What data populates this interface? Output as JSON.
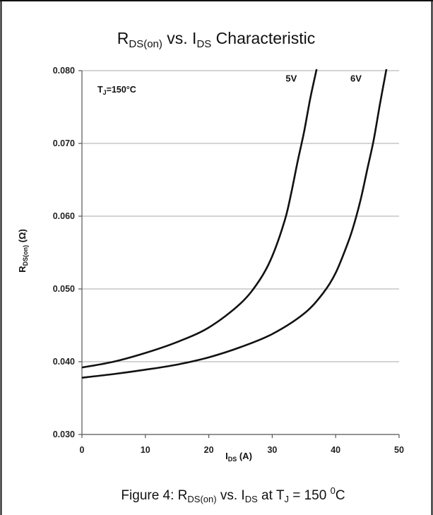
{
  "title": {
    "main": "R",
    "sub": "DS(on)",
    "mid": " vs. I",
    "sub2": "DS",
    "end": " Characteristic"
  },
  "caption": {
    "pre": "Figure 4: R",
    "sub": "DS(on)",
    "mid": " vs. I",
    "sub2": "DS",
    "mid2": " at T",
    "sub3": "J",
    "end": " = 150 ",
    "sup": "0",
    "unit": "C"
  },
  "note": {
    "pre": "T",
    "sub": "J",
    "post": "=150°C"
  },
  "chart_data": {
    "type": "line",
    "xlabel": {
      "main": "I",
      "sub": "DS",
      "unit": " (A)"
    },
    "ylabel": {
      "main": "R",
      "sub": "DS(on)",
      "unit": " (Ω)"
    },
    "xlim": [
      0,
      50
    ],
    "ylim": [
      0.03,
      0.08
    ],
    "x_ticks": [
      "0",
      "10",
      "20",
      "30",
      "40",
      "50"
    ],
    "y_ticks": [
      "0.030",
      "0.040",
      "0.050",
      "0.060",
      "0.070",
      "0.080"
    ],
    "grid": true,
    "series": [
      {
        "name": "5V",
        "x": [
          0,
          5,
          10,
          15,
          20,
          25,
          28,
          30,
          32,
          33,
          34,
          35,
          36,
          37
        ],
        "y": [
          0.0392,
          0.04,
          0.0412,
          0.0427,
          0.0447,
          0.048,
          0.0512,
          0.0545,
          0.0595,
          0.0632,
          0.0675,
          0.0715,
          0.0762,
          0.0802
        ]
      },
      {
        "name": "6V",
        "x": [
          0,
          5,
          10,
          15,
          20,
          25,
          30,
          35,
          38,
          40,
          42,
          43,
          44,
          45,
          46,
          47,
          48
        ],
        "y": [
          0.0378,
          0.0383,
          0.0389,
          0.0396,
          0.0406,
          0.042,
          0.0438,
          0.0466,
          0.0494,
          0.0522,
          0.0565,
          0.0592,
          0.0625,
          0.0665,
          0.0705,
          0.0755,
          0.0802
        ]
      }
    ],
    "series_label_points": [
      {
        "name": "5V",
        "x": 33.0,
        "y": 0.0785
      },
      {
        "name": "6V",
        "x": 43.2,
        "y": 0.0785
      }
    ]
  }
}
